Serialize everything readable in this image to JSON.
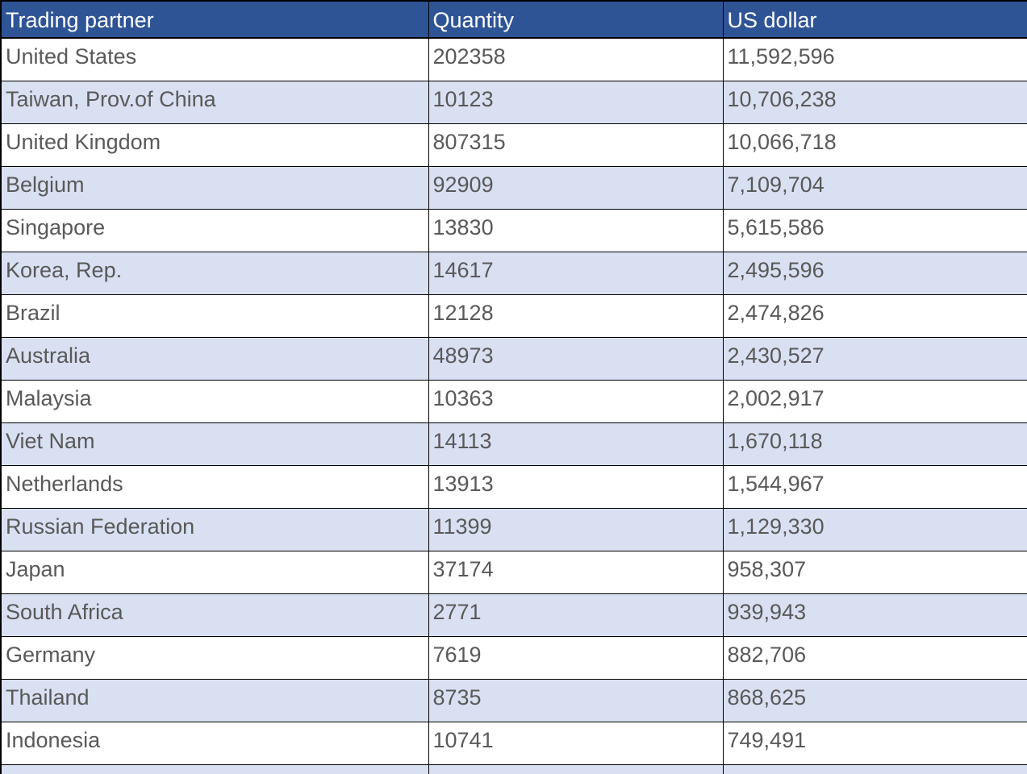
{
  "table": {
    "columns": [
      {
        "label": "Trading partner"
      },
      {
        "label": "Quantity"
      },
      {
        "label": "US dollar"
      }
    ],
    "rows": [
      {
        "partner": "United States",
        "quantity": "202358",
        "usd": "11,592,596"
      },
      {
        "partner": "Taiwan, Prov.of China",
        "quantity": "10123",
        "usd": "10,706,238"
      },
      {
        "partner": "United Kingdom",
        "quantity": "807315",
        "usd": "10,066,718"
      },
      {
        "partner": "Belgium",
        "quantity": "92909",
        "usd": "7,109,704"
      },
      {
        "partner": "Singapore",
        "quantity": "13830",
        "usd": "5,615,586"
      },
      {
        "partner": "Korea, Rep.",
        "quantity": "14617",
        "usd": "2,495,596"
      },
      {
        "partner": "Brazil",
        "quantity": "12128",
        "usd": "2,474,826"
      },
      {
        "partner": "Australia",
        "quantity": "48973",
        "usd": "2,430,527"
      },
      {
        "partner": "Malaysia",
        "quantity": "10363",
        "usd": "2,002,917"
      },
      {
        "partner": "Viet Nam",
        "quantity": "14113",
        "usd": "1,670,118"
      },
      {
        "partner": "Netherlands",
        "quantity": "13913",
        "usd": "1,544,967"
      },
      {
        "partner": "Russian Federation",
        "quantity": "11399",
        "usd": "1,129,330"
      },
      {
        "partner": "Japan",
        "quantity": "37174",
        "usd": "958,307"
      },
      {
        "partner": "South Africa",
        "quantity": "2771",
        "usd": "939,943"
      },
      {
        "partner": "Germany",
        "quantity": "7619",
        "usd": "882,706"
      },
      {
        "partner": "Thailand",
        "quantity": "8735",
        "usd": "868,625"
      },
      {
        "partner": "Indonesia",
        "quantity": "10741",
        "usd": "749,491"
      }
    ]
  },
  "colors": {
    "header_bg": "#2F5496",
    "header_text": "#FFFFFF",
    "row_alt_bg": "#D9E0F2",
    "body_text": "#595959",
    "border": "#000000"
  }
}
